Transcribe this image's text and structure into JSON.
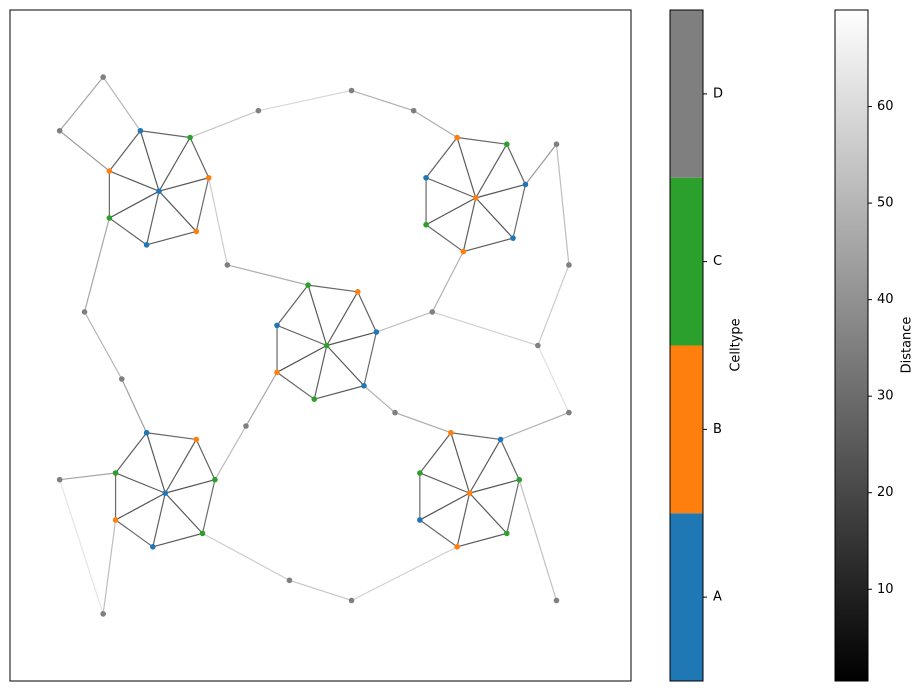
{
  "chart_data": {
    "type": "network",
    "xlim": [
      0,
      100
    ],
    "ylim": [
      0,
      100
    ],
    "nodes": {
      "x": [
        24,
        32,
        29,
        21,
        16,
        16,
        22,
        30,
        75,
        83,
        80,
        72,
        67,
        67,
        73,
        81,
        51,
        59,
        56,
        48,
        43,
        43,
        49,
        57,
        25,
        33,
        30,
        22,
        17,
        17,
        23,
        31,
        74,
        82,
        79,
        71,
        66,
        66,
        72,
        80,
        8,
        15,
        40,
        55,
        65,
        88,
        90,
        85,
        68,
        35,
        12,
        18,
        38,
        62,
        45,
        15,
        55,
        88,
        90,
        8
      ],
      "y": [
        73,
        75,
        81,
        82,
        76,
        69,
        65,
        67,
        72,
        74,
        80,
        81,
        75,
        68,
        64,
        66,
        50,
        52,
        58,
        59,
        53,
        46,
        42,
        44,
        28,
        30,
        36,
        37,
        31,
        24,
        20,
        22,
        28,
        30,
        36,
        37,
        31,
        24,
        20,
        22,
        82,
        90,
        85,
        88,
        85,
        80,
        62,
        50,
        55,
        62,
        55,
        45,
        38,
        40,
        15,
        10,
        12,
        12,
        40,
        30
      ],
      "celltype": [
        0,
        1,
        2,
        0,
        1,
        2,
        0,
        1,
        1,
        0,
        2,
        1,
        0,
        2,
        1,
        0,
        2,
        0,
        1,
        2,
        0,
        1,
        2,
        0,
        0,
        2,
        1,
        0,
        2,
        1,
        0,
        2,
        1,
        2,
        0,
        1,
        2,
        0,
        1,
        2,
        3,
        3,
        3,
        3,
        3,
        3,
        3,
        3,
        3,
        3,
        3,
        3,
        3,
        3,
        3,
        3,
        3,
        3,
        3,
        3
      ]
    },
    "edges": {
      "source": [
        0,
        0,
        0,
        0,
        0,
        0,
        0,
        1,
        2,
        3,
        4,
        5,
        6,
        7,
        8,
        8,
        8,
        8,
        8,
        8,
        8,
        9,
        10,
        11,
        12,
        13,
        14,
        15,
        16,
        16,
        16,
        16,
        16,
        16,
        16,
        17,
        18,
        19,
        20,
        21,
        22,
        23,
        24,
        24,
        24,
        24,
        24,
        24,
        24,
        25,
        26,
        27,
        28,
        29,
        30,
        31,
        32,
        32,
        32,
        32,
        32,
        32,
        32,
        33,
        34,
        35,
        36,
        37,
        38,
        39,
        40,
        41,
        40,
        42,
        42,
        43,
        44,
        45,
        45,
        46,
        47,
        48,
        48,
        49,
        49,
        50,
        50,
        51,
        52,
        52,
        53,
        53,
        54,
        54,
        55,
        56,
        57,
        58,
        58,
        59,
        55
      ],
      "target": [
        1,
        2,
        3,
        4,
        5,
        6,
        7,
        2,
        3,
        4,
        5,
        6,
        7,
        1,
        9,
        10,
        11,
        12,
        13,
        14,
        15,
        10,
        11,
        12,
        13,
        14,
        15,
        9,
        17,
        18,
        19,
        20,
        21,
        22,
        23,
        18,
        19,
        20,
        21,
        22,
        23,
        17,
        25,
        26,
        27,
        28,
        29,
        30,
        31,
        26,
        27,
        28,
        29,
        30,
        31,
        25,
        33,
        34,
        35,
        36,
        37,
        38,
        39,
        34,
        35,
        36,
        37,
        38,
        39,
        33,
        41,
        3,
        4,
        43,
        2,
        44,
        11,
        9,
        46,
        47,
        48,
        14,
        17,
        19,
        1,
        51,
        5,
        27,
        21,
        25,
        23,
        35,
        31,
        56,
        29,
        38,
        33,
        34,
        47,
        28,
        59
      ],
      "distance": [
        4,
        6,
        5,
        7,
        3,
        8,
        5,
        9,
        11,
        8,
        12,
        10,
        7,
        13,
        4,
        6,
        5,
        7,
        3,
        8,
        5,
        9,
        11,
        8,
        12,
        10,
        7,
        13,
        4,
        6,
        5,
        7,
        3,
        8,
        5,
        9,
        11,
        8,
        12,
        10,
        7,
        13,
        4,
        6,
        5,
        7,
        3,
        8,
        5,
        9,
        11,
        8,
        12,
        10,
        7,
        13,
        4,
        6,
        5,
        7,
        3,
        8,
        5,
        9,
        11,
        8,
        12,
        10,
        7,
        13,
        35,
        42,
        30,
        55,
        48,
        40,
        38,
        30,
        45,
        50,
        52,
        40,
        45,
        38,
        50,
        42,
        36,
        33,
        36,
        44,
        40,
        37,
        50,
        48,
        45,
        52,
        46,
        40,
        58,
        35,
        60
      ]
    },
    "celltype_colorbar": {
      "label": "Celltype",
      "categories": [
        "A",
        "B",
        "C",
        "D"
      ],
      "colors": [
        "#1f77b4",
        "#ff7f0e",
        "#2ca02c",
        "#7f7f7f"
      ]
    },
    "distance_colorbar": {
      "label": "Distance",
      "lim": [
        0.5,
        70
      ],
      "ticks": [
        10,
        20,
        30,
        40,
        50,
        60
      ],
      "colormap": [
        "#000000",
        "#ffffff"
      ]
    }
  }
}
